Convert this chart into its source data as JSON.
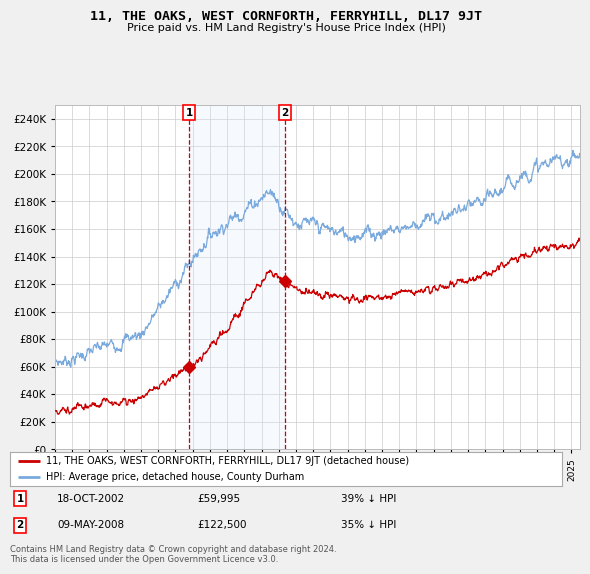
{
  "title": "11, THE OAKS, WEST CORNFORTH, FERRYHILL, DL17 9JT",
  "subtitle": "Price paid vs. HM Land Registry's House Price Index (HPI)",
  "ylim": [
    0,
    250000
  ],
  "xlim_start": 1995.0,
  "xlim_end": 2025.5,
  "sale1_x": 2002.79,
  "sale1_y": 59995,
  "sale1_label": "1",
  "sale2_x": 2008.36,
  "sale2_y": 122500,
  "sale2_label": "2",
  "sale1_date": "18-OCT-2002",
  "sale1_price": "£59,995",
  "sale1_hpi": "39% ↓ HPI",
  "sale2_date": "09-MAY-2008",
  "sale2_price": "£122,500",
  "sale2_hpi": "35% ↓ HPI",
  "line1_color": "#cc0000",
  "line2_color": "#7aaadd",
  "shade_color": "#ddeeff",
  "legend1_label": "11, THE OAKS, WEST CORNFORTH, FERRYHILL, DL17 9JT (detached house)",
  "legend2_label": "HPI: Average price, detached house, County Durham",
  "footnote": "Contains HM Land Registry data © Crown copyright and database right 2024.\nThis data is licensed under the Open Government Licence v3.0.",
  "bg_color": "#f0f0f0",
  "plot_bg_color": "#ffffff",
  "grid_color": "#cccccc"
}
